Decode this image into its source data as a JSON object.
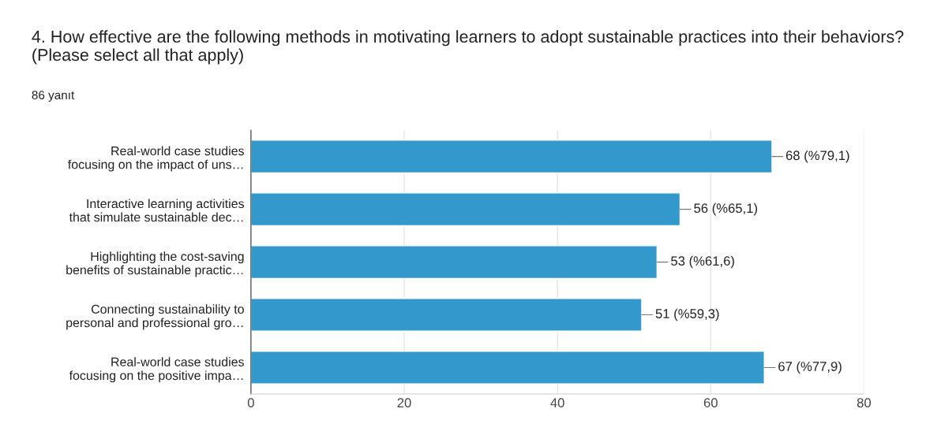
{
  "chart_data": {
    "type": "bar",
    "orientation": "horizontal",
    "title": "4. How effective are the following methods in motivating learners to adopt sustainable practices into their behaviors? (Please select all that apply)",
    "subtitle": "86 yanıt",
    "categories": [
      "Real-world case studies\nfocusing on the impact of uns…",
      "Interactive learning activities\nthat simulate sustainable dec…",
      "Highlighting the cost-saving\nbenefits of sustainable practic…",
      "Connecting sustainability to\npersonal and professional gro…",
      "Real-world case studies\nfocusing on the positive impa…"
    ],
    "values": [
      68,
      56,
      53,
      51,
      67
    ],
    "value_labels": [
      "68 (%79,1)",
      "56 (%65,1)",
      "53 (%61,6)",
      "51 (%59,3)",
      "67 (%77,9)"
    ],
    "color": "#3399cc",
    "xlim": [
      0,
      80
    ],
    "xticks": [
      0,
      20,
      40,
      60,
      80
    ],
    "grid": "x"
  }
}
